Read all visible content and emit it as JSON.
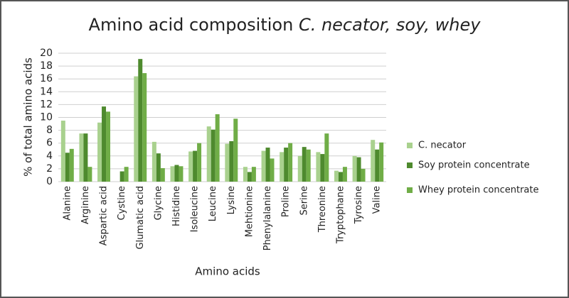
{
  "chart_data": {
    "type": "bar",
    "title": "Amino acid composition",
    "title_emphasis": "C. necator, soy, whey",
    "x_label": "Amino acids",
    "y_label": "% of total amino acids",
    "categories": [
      "Alanine",
      "Arginine",
      "Aspartic acid",
      "Cystine",
      "Glumatic acid",
      "Glycine",
      "Histidine",
      "Isoleucine",
      "Leucine",
      "Lysine",
      "Mehtionine",
      "Phenylalanine",
      "Proline",
      "Serine",
      "Threonine",
      "Tryptophane",
      "Tyrosine",
      "Valine"
    ],
    "series": [
      {
        "name": "C. necator",
        "color": "#a9d18e",
        "values": [
          9.5,
          7.5,
          9.2,
          null,
          16.4,
          6.2,
          2.4,
          4.7,
          8.6,
          5.9,
          2.3,
          4.8,
          4.6,
          4.0,
          4.6,
          1.7,
          4.0,
          6.5
        ]
      },
      {
        "name": "Soy protein concentrate",
        "color": "#4e8a2e",
        "values": [
          4.5,
          7.5,
          11.7,
          1.6,
          19.1,
          4.4,
          2.6,
          4.8,
          8.1,
          6.3,
          1.5,
          5.3,
          5.3,
          5.4,
          4.3,
          1.5,
          3.8,
          5.0
        ]
      },
      {
        "name": "Whey protein concentrate",
        "color": "#70ad47",
        "values": [
          5.1,
          2.3,
          10.9,
          2.3,
          16.9,
          2.1,
          2.4,
          6.0,
          10.5,
          9.8,
          2.3,
          3.6,
          6.0,
          5.0,
          7.5,
          2.3,
          2.0,
          6.1
        ]
      }
    ],
    "ylim": [
      0,
      20
    ],
    "yticks": [
      0,
      2,
      4,
      6,
      8,
      10,
      12,
      14,
      16,
      18,
      20
    ],
    "grid": true,
    "legend": "right"
  }
}
